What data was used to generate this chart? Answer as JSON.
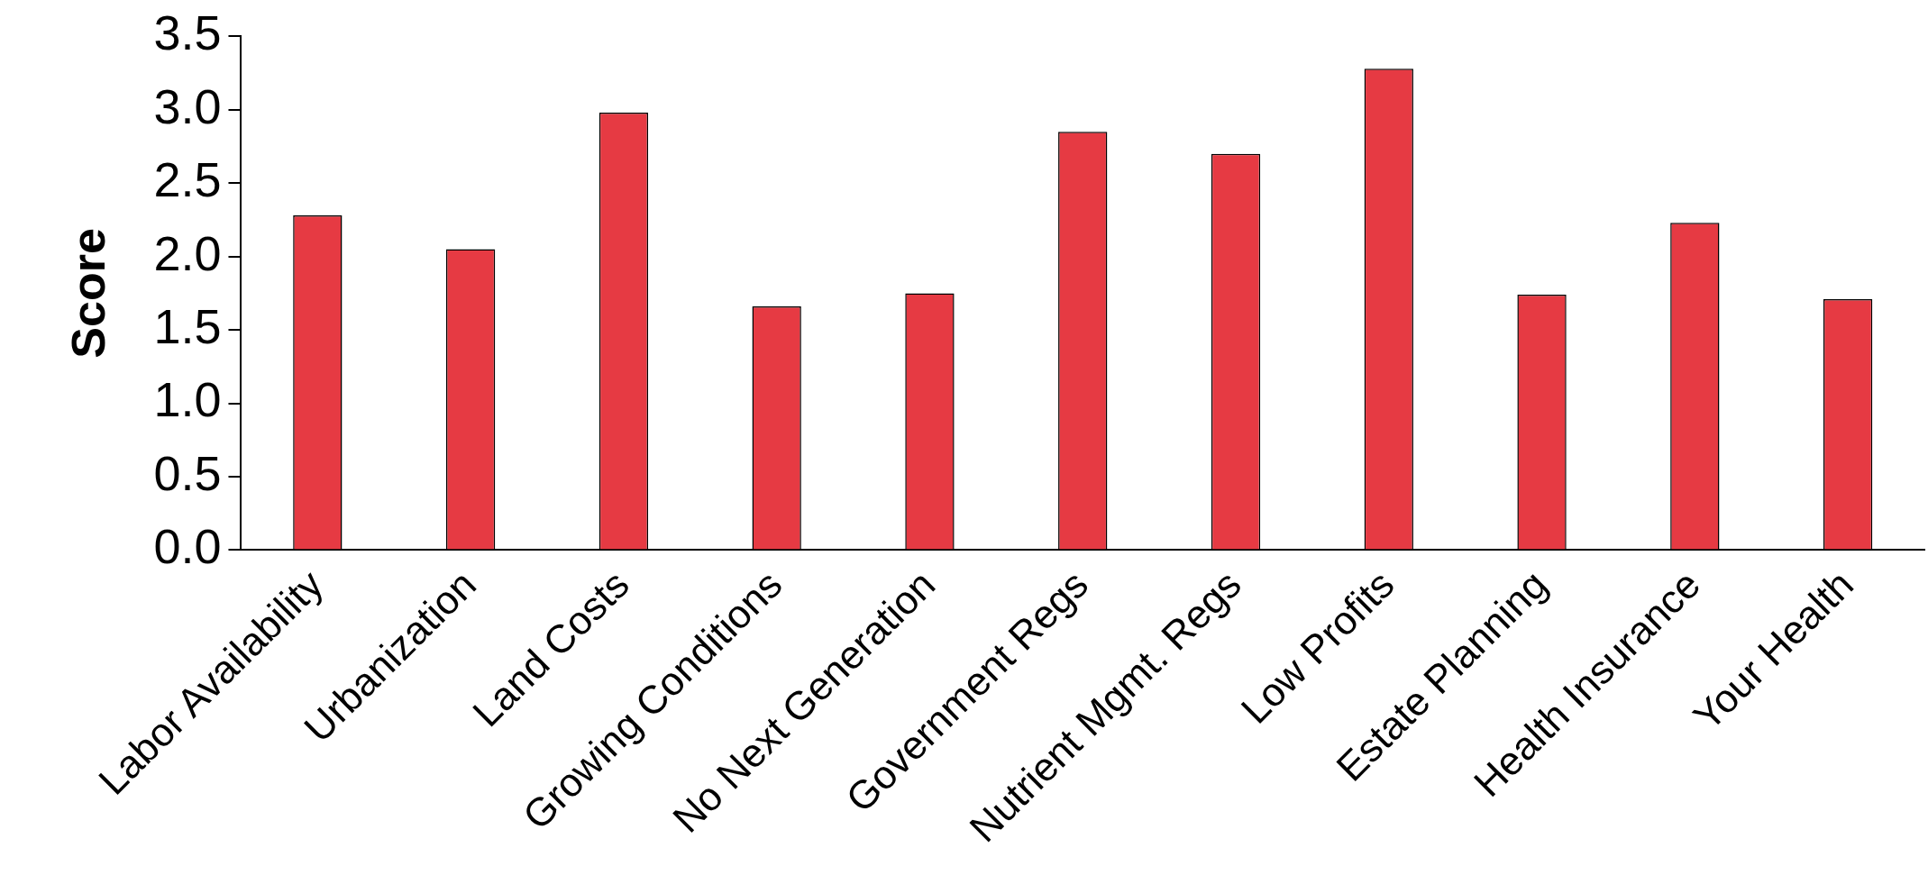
{
  "chart_data": {
    "type": "bar",
    "ylabel": "Score",
    "categories": [
      "Labor Availability",
      "Urbanization",
      "Land Costs",
      "Growing Conditions",
      "No Next Generation",
      "Government Regs",
      "Nutrient Mgmt. Regs",
      "Low Profits",
      "Estate Planning",
      "Health Insurance",
      "Your Health"
    ],
    "values": [
      2.28,
      2.05,
      2.98,
      1.66,
      1.75,
      2.85,
      2.7,
      3.28,
      1.74,
      2.23,
      1.71
    ],
    "color": "#e63a43",
    "ylim": [
      0,
      3.5
    ],
    "yticks": [
      {
        "value": 0,
        "label": "0.0"
      },
      {
        "value": 0.5,
        "label": "0.5"
      },
      {
        "value": 1,
        "label": "1.0"
      },
      {
        "value": 1.5,
        "label": "1.5"
      },
      {
        "value": 2,
        "label": "2.0"
      },
      {
        "value": 2.5,
        "label": "2.5"
      },
      {
        "value": 3,
        "label": "3.0"
      },
      {
        "value": 3.5,
        "label": "3.5"
      }
    ],
    "grid": false,
    "legend": false
  }
}
